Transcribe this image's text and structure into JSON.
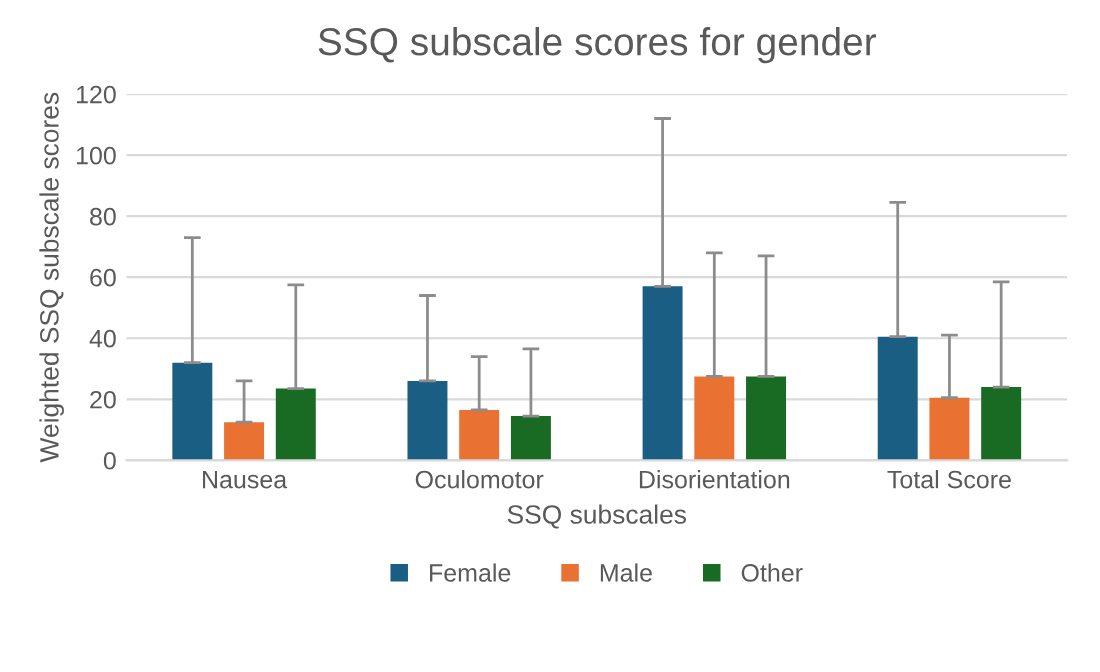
{
  "chart_data": {
    "type": "bar",
    "title": "SSQ subscale scores for gender",
    "xlabel": "SSQ subscales",
    "ylabel": "Weighted SSQ subscale scores",
    "categories": [
      "Nausea",
      "Oculomotor",
      "Disorientation",
      "Total Score"
    ],
    "series": [
      {
        "name": "Female",
        "color": "#1a5e83",
        "values": [
          32,
          26,
          57,
          40.5
        ],
        "errors": [
          [
            32,
            73
          ],
          [
            26,
            54
          ],
          [
            57,
            112
          ],
          [
            40.5,
            84.5
          ]
        ]
      },
      {
        "name": "Male",
        "color": "#e97132",
        "values": [
          12.5,
          16.5,
          27.5,
          20.5
        ],
        "errors": [
          [
            12.5,
            26
          ],
          [
            16.5,
            34
          ],
          [
            27.5,
            68
          ],
          [
            20.5,
            41
          ]
        ]
      },
      {
        "name": "Other",
        "color": "#196b24",
        "values": [
          23.5,
          14.5,
          27.5,
          24
        ],
        "errors": [
          [
            23.5,
            57.5
          ],
          [
            14.5,
            36.5
          ],
          [
            27.5,
            67
          ],
          [
            24,
            58.5
          ]
        ]
      }
    ],
    "ylim": [
      0,
      120
    ],
    "yticks": [
      0,
      20,
      40,
      60,
      80,
      100,
      120
    ],
    "grid": "y",
    "legend": "bottom"
  }
}
